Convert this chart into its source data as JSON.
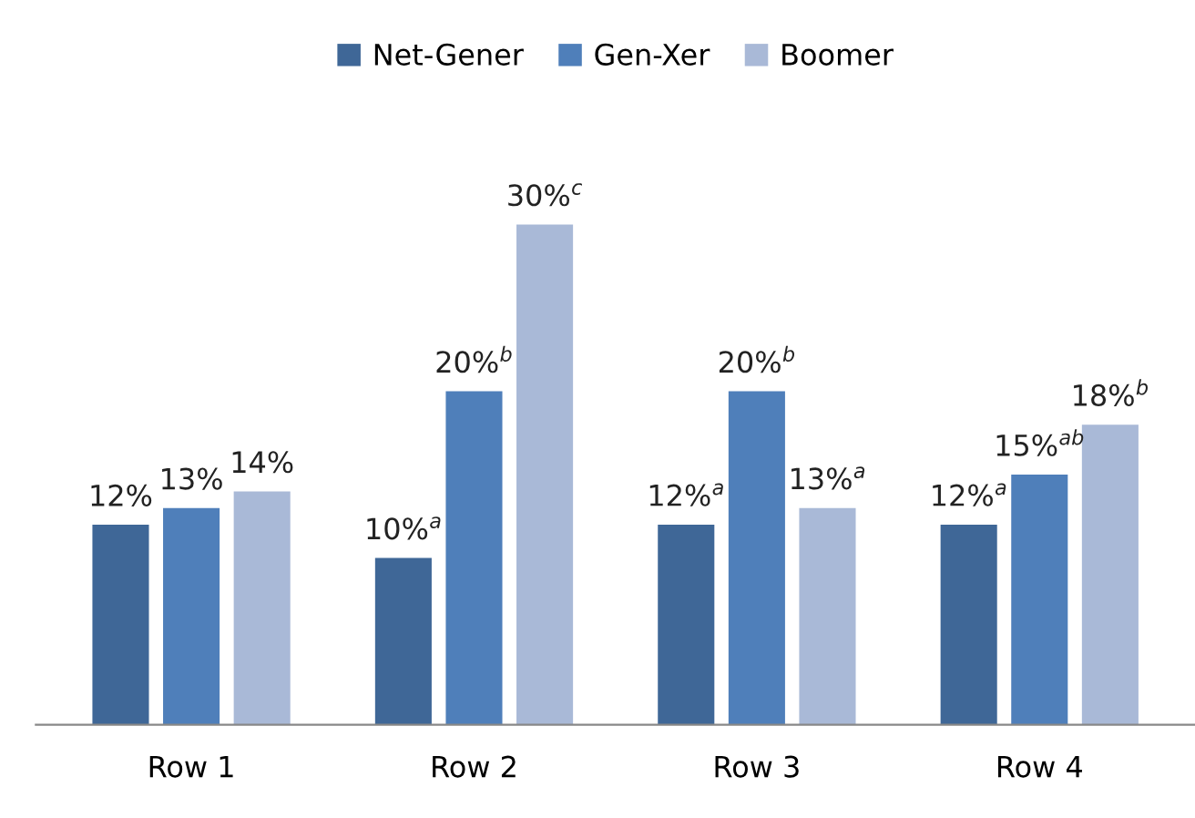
{
  "chart_data": {
    "type": "bar",
    "categories": [
      "Row 1",
      "Row 2",
      "Row 3",
      "Row 4"
    ],
    "series": [
      {
        "name": "Net-Gener",
        "color": "#3f6797",
        "values": [
          12,
          10,
          12,
          12
        ],
        "value_labels": [
          "12%",
          "10%$^{a}$",
          "12%$^{a}$",
          "12%$^{a}$"
        ]
      },
      {
        "name": "Gen-Xer",
        "color": "#4f7fba",
        "values": [
          13,
          20,
          20,
          15
        ],
        "value_labels": [
          "13%",
          "20%$^{b}$",
          "20%$^{b}$",
          "15%$^{ab}$"
        ]
      },
      {
        "name": "Boomer",
        "color": "#a9b9d7",
        "values": [
          14,
          30,
          13,
          18
        ],
        "value_labels": [
          "14%",
          "30%$^{c}$",
          "13%$^{a}$",
          "18%$^{b}$"
        ]
      }
    ],
    "legend": "top",
    "grid": false
  }
}
